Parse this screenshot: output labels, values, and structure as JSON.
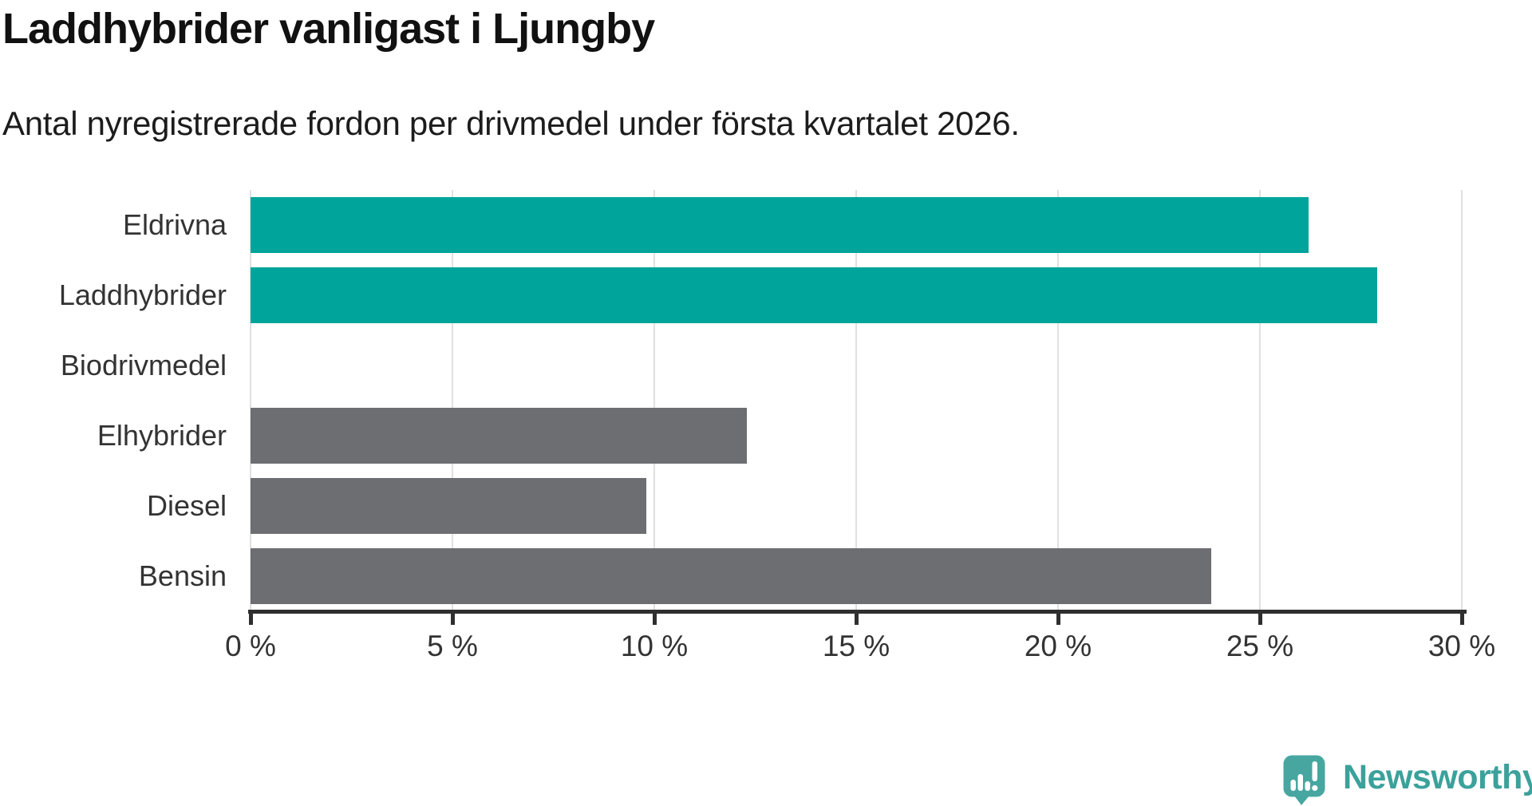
{
  "title": "Laddhybrider vanligast i Ljungby",
  "subtitle": "Antal nyregistrerade fordon per drivmedel under första kvartalet 2026.",
  "branding": {
    "logo_text": "Newsworthy",
    "logo_icon": "newsworthy-speech-bubble-bar-chart-icon",
    "brand_color": "#3ba19b"
  },
  "colors": {
    "highlight_bar": "#00a49a",
    "default_bar": "#6d6e72",
    "axis": "#2f2f2f",
    "gridline": "#e0e0e0",
    "label_text": "#333333",
    "title_text": "#111111",
    "background": "#ffffff"
  },
  "chart_data": {
    "type": "bar",
    "orientation": "horizontal",
    "title": "Laddhybrider vanligast i Ljungby",
    "subtitle": "Antal nyregistrerade fordon per drivmedel under första kvartalet 2026.",
    "categories": [
      "Eldrivna",
      "Laddhybrider",
      "Biodrivmedel",
      "Elhybrider",
      "Diesel",
      "Bensin"
    ],
    "values": [
      26.2,
      27.9,
      0,
      12.3,
      9.8,
      23.8
    ],
    "unit": "%",
    "highlighted": [
      true,
      true,
      false,
      false,
      false,
      false
    ],
    "xlim": [
      0,
      30
    ],
    "x_ticks": [
      {
        "value": 0,
        "label": "0 %"
      },
      {
        "value": 5,
        "label": "5 %"
      },
      {
        "value": 10,
        "label": "10 %"
      },
      {
        "value": 15,
        "label": "15 %"
      },
      {
        "value": 20,
        "label": "20 %"
      },
      {
        "value": 25,
        "label": "25 %"
      },
      {
        "value": 30,
        "label": "30 %"
      }
    ],
    "grid": true,
    "legend": "none"
  }
}
